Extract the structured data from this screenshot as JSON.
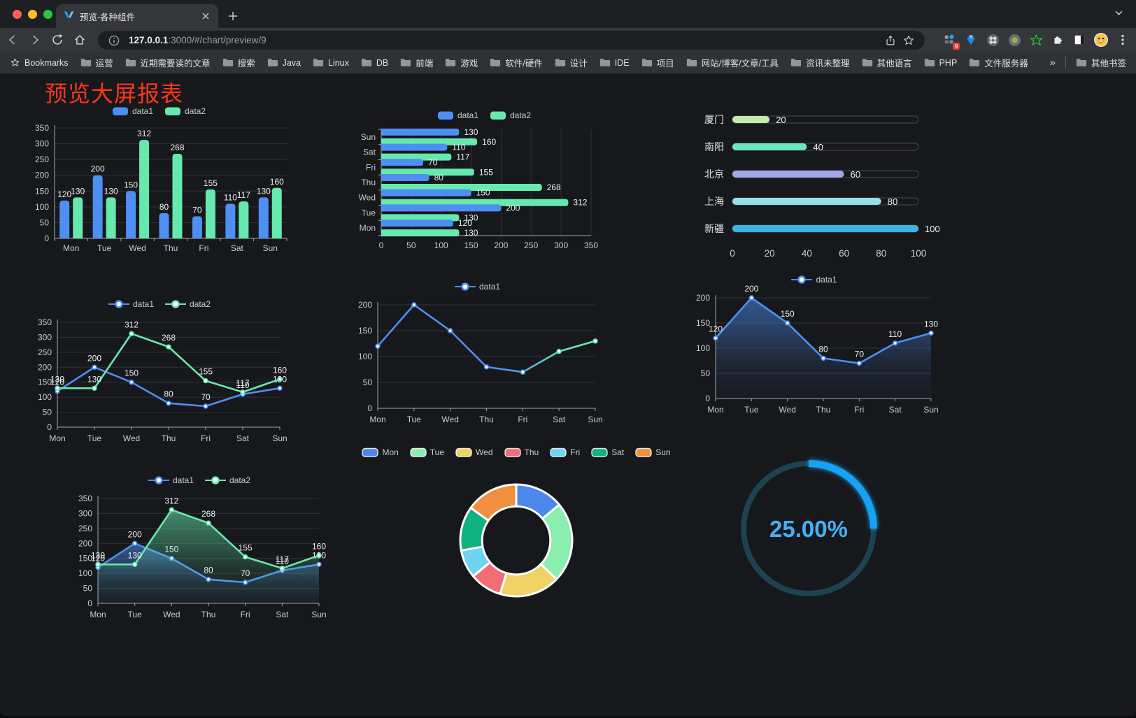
{
  "browser": {
    "tab": {
      "title": "预览-各种组件"
    },
    "url": {
      "host": "127.0.0.1",
      "path": ":3000/#/chart/preview/9"
    },
    "bookmarks": {
      "label": "Bookmarks",
      "items": [
        "运营",
        "近期需要读的文章",
        "搜索",
        "Java",
        "Linux",
        "DB",
        "前端",
        "游戏",
        "软件/硬件",
        "设计",
        "IDE",
        "项目",
        "网站/博客/文章/工具",
        "资讯未整理",
        "其他语言",
        "PHP",
        "文件服务器"
      ],
      "overflow": "»",
      "other": "其他书签"
    },
    "extensions": {
      "badge": "9"
    }
  },
  "page": {
    "title": "预览大屏报表"
  },
  "colors": {
    "accent_blue": "#4d8ff2",
    "accent_green": "#66e9ac",
    "title_red": "#f5381c",
    "grid": "#2f323a",
    "axis": "#a2a8b1",
    "tick_text": "#c7cbd1",
    "value_label": "#eceff2"
  },
  "chart_data": [
    {
      "id": "bar-vertical",
      "type": "bar",
      "categories": [
        "Mon",
        "Tue",
        "Wed",
        "Thu",
        "Fri",
        "Sat",
        "Sun"
      ],
      "series": [
        {
          "name": "data1",
          "color": "#4d8ff2",
          "values": [
            120,
            200,
            150,
            80,
            70,
            110,
            130
          ]
        },
        {
          "name": "data2",
          "color": "#66e9ac",
          "values": [
            130,
            130,
            312,
            268,
            155,
            117,
            160
          ]
        }
      ],
      "ylim": [
        0,
        350
      ],
      "yticks": [
        0,
        50,
        100,
        150,
        200,
        250,
        300,
        350
      ],
      "legend_position": "top",
      "labels": true,
      "grid": true
    },
    {
      "id": "bar-horizontal",
      "type": "bar",
      "orientation": "horizontal",
      "display_order": "Sun-at-top",
      "categories": [
        "Mon",
        "Tue",
        "Wed",
        "Thu",
        "Fri",
        "Sat",
        "Sun"
      ],
      "series": [
        {
          "name": "data1",
          "color": "#4d8ff2",
          "values": [
            120,
            200,
            150,
            80,
            70,
            110,
            130
          ]
        },
        {
          "name": "data2",
          "color": "#66e9ac",
          "values": [
            130,
            130,
            312,
            268,
            155,
            117,
            160
          ]
        }
      ],
      "xlim": [
        0,
        350
      ],
      "xticks": [
        0,
        50,
        100,
        150,
        200,
        250,
        300,
        350
      ],
      "legend_position": "top",
      "labels": true,
      "grid": true
    },
    {
      "id": "progress-bars",
      "type": "bar",
      "orientation": "horizontal-progress",
      "max": 100,
      "ticks": [
        0,
        20,
        40,
        60,
        80,
        100
      ],
      "items": [
        {
          "label": "厦门",
          "value": 20,
          "color": "#c4ebad"
        },
        {
          "label": "南阳",
          "value": 40,
          "color": "#6be6c1"
        },
        {
          "label": "北京",
          "value": 60,
          "color": "#a0a7e6"
        },
        {
          "label": "上海",
          "value": 80,
          "color": "#96dee8"
        },
        {
          "label": "新疆",
          "value": 100,
          "color": "#3fb1e3"
        }
      ]
    },
    {
      "id": "line-two-series",
      "type": "line",
      "categories": [
        "Mon",
        "Tue",
        "Wed",
        "Thu",
        "Fri",
        "Sat",
        "Sun"
      ],
      "series": [
        {
          "name": "data1",
          "color": "#4d8ff2",
          "values": [
            120,
            200,
            150,
            80,
            70,
            110,
            130
          ]
        },
        {
          "name": "data2",
          "color": "#66e9ac",
          "values": [
            130,
            130,
            312,
            268,
            155,
            117,
            160
          ]
        }
      ],
      "ylim": [
        0,
        350
      ],
      "yticks": [
        0,
        50,
        100,
        150,
        200,
        250,
        300,
        350
      ],
      "legend_position": "top",
      "labels": true,
      "grid": true
    },
    {
      "id": "line-gradient",
      "type": "line",
      "categories": [
        "Mon",
        "Tue",
        "Wed",
        "Thu",
        "Fri",
        "Sat",
        "Sun"
      ],
      "series": [
        {
          "name": "data1",
          "gradient": [
            "#4d8ff2",
            "#66e9ac"
          ],
          "values": [
            120,
            200,
            150,
            80,
            70,
            110,
            130
          ]
        }
      ],
      "ylim": [
        0,
        200
      ],
      "yticks": [
        0,
        50,
        100,
        150,
        200
      ],
      "legend_position": "top",
      "labels": false,
      "grid": true
    },
    {
      "id": "line-area",
      "type": "area",
      "categories": [
        "Mon",
        "Tue",
        "Wed",
        "Thu",
        "Fri",
        "Sat",
        "Sun"
      ],
      "series": [
        {
          "name": "data1",
          "color": "#4d8ff2",
          "values": [
            120,
            200,
            150,
            80,
            70,
            110,
            130
          ],
          "area": true
        }
      ],
      "ylim": [
        0,
        200
      ],
      "yticks": [
        0,
        50,
        100,
        150,
        200
      ],
      "legend_position": "top",
      "labels": true,
      "grid": true
    },
    {
      "id": "line-area-two",
      "type": "area",
      "categories": [
        "Mon",
        "Tue",
        "Wed",
        "Thu",
        "Fri",
        "Sat",
        "Sun"
      ],
      "series": [
        {
          "name": "data1",
          "color": "#4d8ff2",
          "values": [
            120,
            200,
            150,
            80,
            70,
            110,
            130
          ],
          "area": true
        },
        {
          "name": "data2",
          "color": "#66e9ac",
          "values": [
            130,
            130,
            312,
            268,
            155,
            117,
            160
          ],
          "area": true
        }
      ],
      "ylim": [
        0,
        350
      ],
      "yticks": [
        0,
        50,
        100,
        150,
        200,
        250,
        300,
        350
      ],
      "legend_position": "top",
      "labels": true,
      "grid": true
    },
    {
      "id": "donut",
      "type": "pie",
      "categories": [
        "Mon",
        "Tue",
        "Wed",
        "Thu",
        "Fri",
        "Sat",
        "Sun"
      ],
      "values": [
        120,
        200,
        150,
        80,
        70,
        110,
        130
      ],
      "colors": [
        "#4e87ec",
        "#8aeeae",
        "#f0d264",
        "#f26d74",
        "#6ed4f2",
        "#10b183",
        "#f08f3f"
      ],
      "inner_radius_ratio": 0.61,
      "legend_position": "top"
    },
    {
      "id": "gauge",
      "type": "gauge",
      "value": 25,
      "label": "25.00%",
      "color": "#14a2f5",
      "track_color": "#1d4350",
      "text_color": "#45b1f5"
    }
  ]
}
